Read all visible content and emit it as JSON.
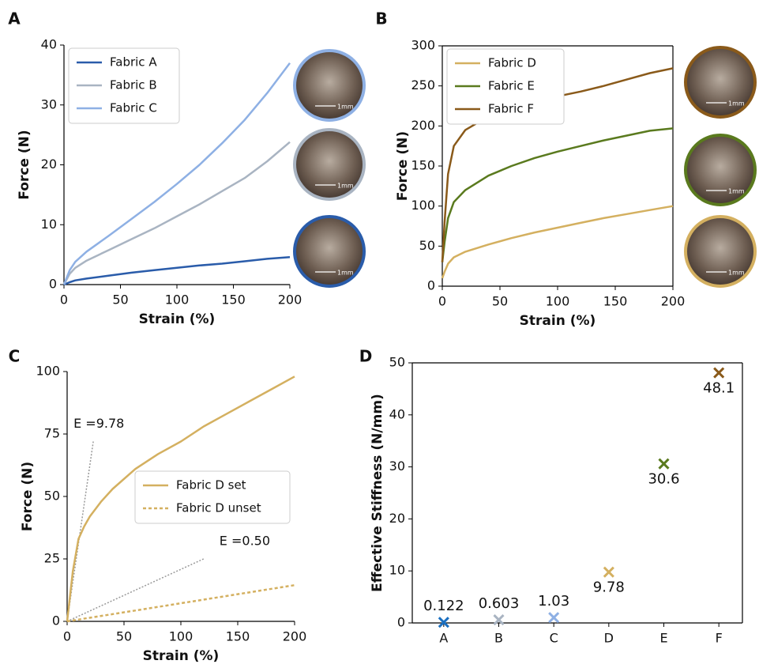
{
  "chart_data": [
    {
      "type": "line",
      "panel": "A",
      "x_label": "Strain (%)",
      "y_label": "Force (N)",
      "x": [
        0,
        5,
        10,
        20,
        40,
        60,
        80,
        100,
        120,
        140,
        160,
        180,
        200
      ],
      "series": [
        {
          "name": "Fabric A",
          "color": "#2a5caa",
          "values": [
            0,
            0.4,
            0.7,
            1.0,
            1.5,
            2.0,
            2.4,
            2.8,
            3.2,
            3.5,
            3.9,
            4.3,
            4.6
          ]
        },
        {
          "name": "Fabric B",
          "color": "#a9b4c2",
          "values": [
            0,
            1.8,
            2.8,
            4.0,
            5.8,
            7.6,
            9.4,
            11.4,
            13.4,
            15.6,
            17.8,
            20.6,
            23.8
          ]
        },
        {
          "name": "Fabric C",
          "color": "#8eb0e4",
          "values": [
            0,
            2.4,
            3.8,
            5.5,
            8.2,
            11.0,
            13.8,
            16.8,
            20.0,
            23.6,
            27.5,
            32,
            37
          ]
        }
      ],
      "xlim": [
        0,
        200
      ],
      "xticks": [
        0,
        50,
        100,
        150,
        200
      ],
      "ylim": [
        0,
        40
      ],
      "yticks": [
        0,
        10,
        20,
        30,
        40
      ],
      "legend": "upper left",
      "insets": [
        {
          "scale": "1mm",
          "color": "#8eb0e4"
        },
        {
          "scale": "1mm",
          "color": "#a9b4c2"
        },
        {
          "scale": "1mm",
          "color": "#2a5caa"
        }
      ]
    },
    {
      "type": "line",
      "panel": "B",
      "x_label": "Strain (%)",
      "y_label": "Force (N)",
      "x": [
        0,
        2,
        5,
        10,
        20,
        40,
        60,
        80,
        100,
        120,
        140,
        160,
        180,
        200
      ],
      "series": [
        {
          "name": "Fabric D",
          "color": "#d4b060",
          "values": [
            10,
            18,
            28,
            36,
            43,
            52,
            60,
            67,
            73,
            79,
            85,
            90,
            95,
            100
          ]
        },
        {
          "name": "Fabric E",
          "color": "#5a7a1e",
          "values": [
            30,
            55,
            85,
            105,
            120,
            138,
            150,
            160,
            168,
            175,
            182,
            188,
            194,
            197
          ]
        },
        {
          "name": "Fabric F",
          "color": "#8a5a1a",
          "values": [
            30,
            80,
            140,
            175,
            195,
            212,
            222,
            230,
            237,
            243,
            250,
            258,
            266,
            272
          ]
        }
      ],
      "xlim": [
        0,
        200
      ],
      "xticks": [
        0,
        50,
        100,
        150,
        200
      ],
      "ylim": [
        0,
        300
      ],
      "yticks": [
        0,
        50,
        100,
        150,
        200,
        250,
        300
      ],
      "legend": "upper left",
      "insets": [
        {
          "scale": "1mm",
          "color": "#8a5a1a"
        },
        {
          "scale": "1mm",
          "color": "#5a7a1e"
        },
        {
          "scale": "1mm",
          "color": "#d4b060"
        }
      ]
    },
    {
      "type": "line",
      "panel": "C",
      "x_label": "Strain (%)",
      "y_label": "Force (N)",
      "series": [
        {
          "name": "Fabric D set",
          "color": "#d4b060",
          "style": "solid",
          "x": [
            0,
            2,
            5,
            10,
            15,
            20,
            30,
            40,
            60,
            80,
            100,
            120,
            140,
            160,
            180,
            200
          ],
          "values": [
            0,
            8,
            20,
            33,
            38,
            42,
            48,
            53,
            61,
            67,
            72,
            78,
            83,
            88,
            93,
            98
          ]
        },
        {
          "name": "Fabric D unset",
          "color": "#d4b060",
          "style": "dotted",
          "x": [
            0,
            200
          ],
          "values": [
            0,
            14.5
          ]
        }
      ],
      "guides": [
        {
          "label": "E =9.78",
          "color": "#999999",
          "x": [
            0,
            23
          ],
          "y": [
            0,
            72
          ]
        },
        {
          "label": "E =0.50",
          "color": "#999999",
          "x": [
            0,
            120
          ],
          "y": [
            0,
            25
          ]
        }
      ],
      "xlim": [
        0,
        200
      ],
      "xticks": [
        0,
        50,
        100,
        150,
        200
      ],
      "ylim": [
        0,
        100
      ],
      "yticks": [
        0,
        25,
        50,
        75,
        100
      ],
      "legend": "center right"
    },
    {
      "type": "scatter",
      "panel": "D",
      "y_label": "Effective Stiffness (N/mm)",
      "categories": [
        "A",
        "B",
        "C",
        "D",
        "E",
        "F"
      ],
      "values": [
        0.122,
        0.603,
        1.03,
        9.78,
        30.6,
        48.1
      ],
      "colors": [
        "#1a6fc0",
        "#a9b4c2",
        "#8eb0e4",
        "#d4b060",
        "#5a7a1e",
        "#8a5a1a"
      ],
      "ylim": [
        0,
        50
      ],
      "yticks": [
        0,
        10,
        20,
        30,
        40,
        50
      ]
    }
  ]
}
